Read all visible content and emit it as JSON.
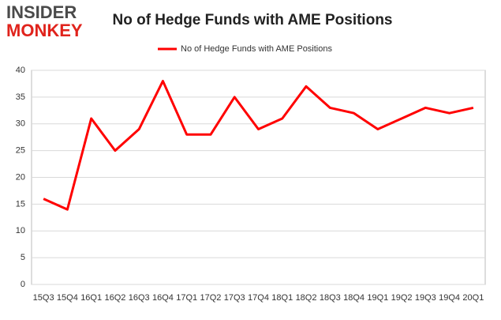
{
  "logo": {
    "top": "INSIDER",
    "bottom": "MONKEY"
  },
  "chart_data": {
    "type": "line",
    "title": "No of Hedge Funds with AME Positions",
    "categories": [
      "15Q3",
      "15Q4",
      "16Q1",
      "16Q2",
      "16Q3",
      "16Q4",
      "17Q1",
      "17Q2",
      "17Q3",
      "17Q4",
      "18Q1",
      "18Q2",
      "18Q3",
      "18Q4",
      "19Q1",
      "19Q2",
      "19Q3",
      "19Q4",
      "20Q1"
    ],
    "series": [
      {
        "name": "No of Hedge Funds with AME Positions",
        "color": "#ff0000",
        "values": [
          16,
          14,
          31,
          25,
          29,
          38,
          28,
          28,
          35,
          29,
          31,
          37,
          33,
          32,
          29,
          31,
          33,
          32,
          33
        ]
      }
    ],
    "ylim": [
      0,
      40
    ],
    "yticks": [
      0,
      5,
      10,
      15,
      20,
      25,
      30,
      35,
      40
    ],
    "grid": true,
    "legend": "top"
  }
}
